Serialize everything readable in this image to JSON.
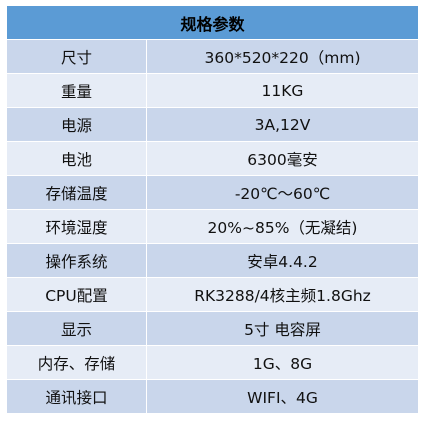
{
  "table": {
    "title": "规格参数",
    "rows": [
      {
        "label": "尺寸",
        "value": "360*520*220（mm)"
      },
      {
        "label": "重量",
        "value": "11KG"
      },
      {
        "label": "电源",
        "value": "3A,12V"
      },
      {
        "label": "电池",
        "value": "6300毫安"
      },
      {
        "label": "存储温度",
        "value": "-20℃～60℃"
      },
      {
        "label": "环境湿度",
        "value": "20%~85%（无凝结)"
      },
      {
        "label": "操作系统",
        "value": "安卓4.4.2"
      },
      {
        "label": "CPU配置",
        "value": "RK3288/4核主频1.8Ghz"
      },
      {
        "label": "显示",
        "value": "5寸 电容屏"
      },
      {
        "label": "内存、存储",
        "value": "1G、8G"
      },
      {
        "label": "通讯接口",
        "value": "WIFI、4G"
      }
    ]
  },
  "colors": {
    "header_bg": "#5b9bd5",
    "row_dark": "#c9d6eb",
    "row_light": "#e6ecf6"
  }
}
